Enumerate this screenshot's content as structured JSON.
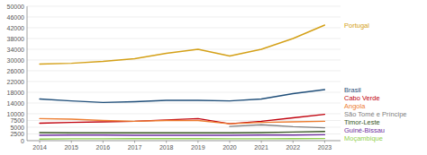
{
  "chart_data": {
    "type": "line",
    "x": [
      2014,
      2015,
      2016,
      2017,
      2018,
      2019,
      2020,
      2021,
      2022,
      2023
    ],
    "xlim": [
      2013.6,
      2023.5
    ],
    "xticks": [
      2014,
      2015,
      2016,
      2017,
      2018,
      2019,
      2020,
      2021,
      2022,
      2023
    ],
    "ylim": [
      0,
      50000
    ],
    "yticks": [
      0,
      2500,
      5000,
      7500,
      10000,
      14000,
      18000,
      22000,
      26000,
      30000,
      34000,
      38000,
      42000,
      46000,
      50000
    ],
    "grid": true,
    "series": [
      {
        "name": "Portugal",
        "color": "#D4A017",
        "values": [
          28500,
          28800,
          29500,
          30500,
          32500,
          34000,
          31500,
          34000,
          38000,
          43000
        ]
      },
      {
        "name": "Brasil",
        "color": "#1F4E79",
        "values": [
          15500,
          14800,
          14200,
          14500,
          15000,
          15000,
          14800,
          15500,
          17500,
          19000
        ]
      },
      {
        "name": "Cabo Verde",
        "color": "#C0000C",
        "values": [
          6500,
          6800,
          7000,
          7200,
          7700,
          8200,
          6300,
          7200,
          8500,
          9800
        ]
      },
      {
        "name": "Angola",
        "color": "#ED7D31",
        "values": [
          8200,
          8000,
          7500,
          7200,
          7500,
          7500,
          6300,
          6800,
          7000,
          7200
        ]
      },
      {
        "name": "São Tomé e Príncipe",
        "color": "#808080",
        "values": [
          null,
          null,
          null,
          null,
          null,
          null,
          5300,
          5900,
          5200,
          4800
        ]
      },
      {
        "name": "Timor-Leste",
        "color": "#375623",
        "values": [
          3000,
          2900,
          2900,
          2900,
          2900,
          2900,
          2900,
          3000,
          3200,
          3400
        ]
      },
      {
        "name": "Guiné-Bissau",
        "color": "#7030A0",
        "values": [
          2000,
          2100,
          2100,
          2000,
          2000,
          2000,
          2000,
          2100,
          2100,
          2200
        ]
      },
      {
        "name": "Moçambique",
        "color": "#92D050",
        "values": [
          600,
          700,
          700,
          750,
          750,
          750,
          700,
          700,
          750,
          800
        ]
      }
    ]
  }
}
